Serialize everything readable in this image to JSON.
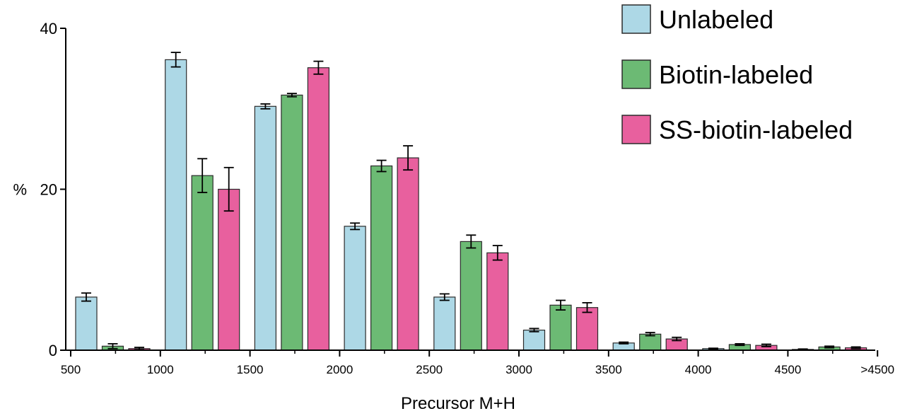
{
  "chart_data": {
    "type": "bar",
    "title": "",
    "xlabel": "Precursor M+H",
    "ylabel": "%",
    "ylim": [
      0,
      40
    ],
    "yticks": [
      0,
      20,
      40
    ],
    "xticks": [
      "500",
      "1000",
      "1500",
      "2000",
      "2500",
      "3000",
      "3500",
      "4000",
      "4500",
      ">4500"
    ],
    "legend_position": "top-right",
    "grid": false,
    "series": [
      {
        "name": "Unlabeled",
        "color": "#add8e6",
        "values": [
          6.6,
          36.1,
          30.3,
          15.4,
          6.6,
          2.5,
          0.9,
          0.2,
          0.1
        ],
        "errors": [
          0.5,
          0.9,
          0.3,
          0.4,
          0.4,
          0.2,
          0.1,
          0.05,
          0.05
        ]
      },
      {
        "name": "Biotin-labeled",
        "color": "#6cba74",
        "values": [
          0.5,
          21.7,
          31.7,
          22.9,
          13.5,
          5.6,
          2.0,
          0.7,
          0.4
        ],
        "errors": [
          0.3,
          2.1,
          0.2,
          0.7,
          0.8,
          0.6,
          0.2,
          0.1,
          0.1
        ]
      },
      {
        "name": "SS-biotin-labeled",
        "color": "#e8609e",
        "values": [
          0.2,
          20.0,
          35.1,
          23.9,
          12.1,
          5.3,
          1.4,
          0.6,
          0.3
        ],
        "errors": [
          0.15,
          2.7,
          0.8,
          1.5,
          0.9,
          0.6,
          0.2,
          0.15,
          0.1
        ]
      }
    ]
  }
}
